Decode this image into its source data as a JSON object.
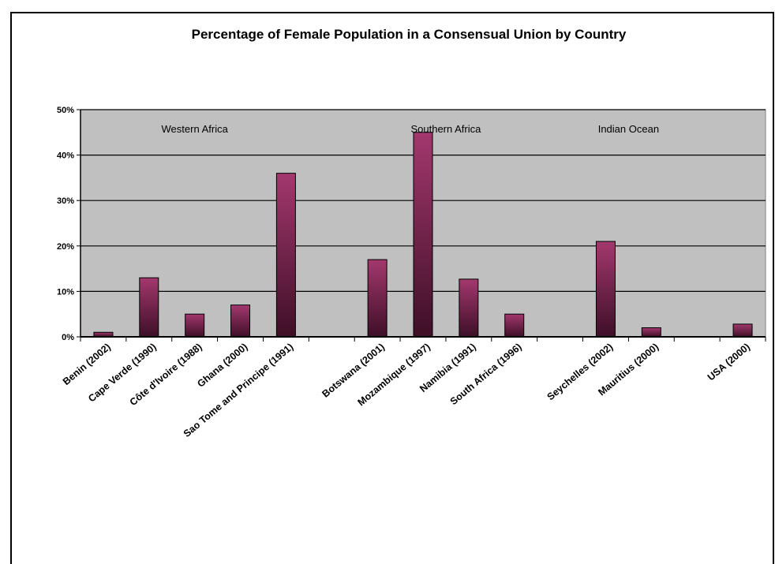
{
  "chart_data": {
    "type": "bar",
    "title": "Percentage of Female Population in a Consensual Union by Country",
    "ylim": [
      0,
      50
    ],
    "yticks": [
      "0%",
      "10%",
      "20%",
      "30%",
      "40%",
      "50%"
    ],
    "categories": [
      "Benin (2002)",
      "Cape Verde (1990)",
      "Côte d'Ivoire (1988)",
      "Ghana (2000)",
      "Sao Tome and Principe (1991)",
      "",
      "Botswana (2001)",
      "Mozambique (1997)",
      "Namibia (1991)",
      "South Africa (1996)",
      "",
      "Seychelles (2002)",
      "Mauritius (2000)",
      "",
      "USA (2000)"
    ],
    "values": [
      1,
      13,
      5,
      7,
      36,
      null,
      17,
      45,
      12.7,
      5,
      null,
      21,
      2,
      null,
      2.8
    ],
    "region_labels": [
      "Western Africa",
      "Southern Africa",
      "Indian Ocean"
    ],
    "grid": true,
    "plot_background": "#c0c0c0",
    "bar_color_top": "#a3386e",
    "bar_color_bottom": "#3e0f26"
  }
}
